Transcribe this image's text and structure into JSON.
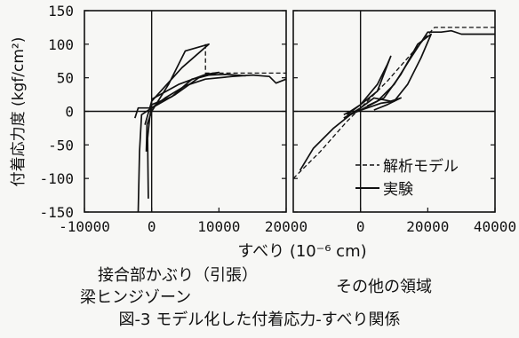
{
  "figure": {
    "ylabel": "付着応力度 (kgf/cm²)",
    "xlabel": "すべり (10⁻⁶ cm)",
    "caption": "図-3 モデル化した付着応力-すべり関係",
    "panel_left_caption": [
      "接合部かぶり（引張）",
      "梁ヒンジゾーン"
    ],
    "panel_right_caption": "その他の領域",
    "legend": [
      {
        "label": "解析モデル",
        "style": "dashed"
      },
      {
        "label": "実験",
        "style": "solid"
      }
    ]
  },
  "chart_data": [
    {
      "type": "line",
      "title": "接合部かぶり（引張） 梁ヒンジゾーン",
      "xlabel": "すべり (10⁻⁶ cm)",
      "ylabel": "付着応力度 (kgf/cm²)",
      "xlim": [
        -10000,
        20000
      ],
      "ylim": [
        -150,
        150
      ],
      "xticks": [
        -10000,
        0,
        10000,
        20000
      ],
      "xtick_labels": [
        "-10000",
        "0",
        "10000",
        "20000"
      ],
      "yticks": [
        -150,
        -100,
        -50,
        0,
        50,
        100,
        150
      ],
      "ytick_labels": [
        "-150",
        "-100",
        "-50",
        "0",
        "50",
        "100",
        "150"
      ],
      "grid": false,
      "series": [
        {
          "name": "解析モデル",
          "style": "dashed",
          "x": [
            8000,
            8000,
            20000
          ],
          "y": [
            100,
            57,
            57
          ]
        },
        {
          "name": "実験",
          "style": "solid",
          "x": [
            -2000,
            -1800,
            -1500,
            0,
            2000,
            5000,
            8000,
            12000,
            15000,
            17500,
            18500,
            20000
          ],
          "y": [
            -150,
            -60,
            -5,
            5,
            20,
            38,
            48,
            52,
            54,
            52,
            42,
            48
          ]
        },
        {
          "name": "実験",
          "style": "solid",
          "x": [
            -500,
            -600,
            -300,
            0,
            3000,
            6000,
            8500,
            11000,
            14000
          ],
          "y": [
            -130,
            -40,
            -10,
            10,
            22,
            48,
            54,
            55,
            53
          ]
        },
        {
          "name": "実験",
          "style": "solid",
          "x": [
            -800,
            -700,
            0,
            2500,
            5000,
            8500,
            4500,
            0,
            -1000
          ],
          "y": [
            -60,
            -20,
            0,
            40,
            90,
            100,
            65,
            15,
            -20
          ]
        },
        {
          "name": "実験",
          "style": "solid",
          "x": [
            -2500,
            -2000,
            0,
            3500,
            7000,
            10000,
            8000,
            4000,
            0
          ],
          "y": [
            -10,
            5,
            5,
            25,
            50,
            58,
            55,
            40,
            18
          ]
        }
      ]
    },
    {
      "type": "line",
      "title": "その他の領域",
      "xlabel": "すべり (10⁻⁶ cm)",
      "ylabel": "付着応力度 (kgf/cm²)",
      "xlim": [
        -20000,
        40000
      ],
      "ylim": [
        -150,
        150
      ],
      "xticks": [
        0,
        20000,
        40000
      ],
      "xtick_labels": [
        "0",
        "20000",
        "40000"
      ],
      "yticks": [
        -150,
        -100,
        -50,
        0,
        50,
        100,
        150
      ],
      "grid": false,
      "series": [
        {
          "name": "解析モデル",
          "style": "dashed",
          "x": [
            -20000,
            -12000,
            -4000,
            0,
            8000,
            22000,
            40000
          ],
          "y": [
            -100,
            -60,
            -15,
            5,
            45,
            125,
            125
          ]
        },
        {
          "name": "実験",
          "style": "solid",
          "x": [
            -18000,
            -14000,
            -8000,
            -3000,
            0,
            5000,
            10000,
            15000,
            20000,
            24000,
            27000,
            30000,
            40000
          ],
          "y": [
            -88,
            -55,
            -25,
            -5,
            2,
            15,
            40,
            80,
            118,
            118,
            120,
            115,
            115
          ]
        },
        {
          "name": "実験",
          "style": "solid",
          "x": [
            -4000,
            0,
            5000,
            8000,
            9000,
            5000,
            0,
            -3000,
            -5000
          ],
          "y": [
            -5,
            10,
            40,
            70,
            82,
            30,
            10,
            0,
            -5
          ]
        },
        {
          "name": "実験",
          "style": "solid",
          "x": [
            -2000,
            2000,
            6000,
            10000,
            14000,
            18000,
            21000,
            17000,
            12000,
            7000,
            2000
          ],
          "y": [
            -2,
            5,
            12,
            15,
            40,
            80,
            115,
            100,
            55,
            20,
            8
          ]
        },
        {
          "name": "実験",
          "style": "solid",
          "x": [
            -5000,
            0,
            4000,
            9000,
            12000,
            8000,
            4000
          ],
          "y": [
            -10,
            5,
            20,
            15,
            20,
            10,
            2
          ]
        }
      ]
    }
  ]
}
